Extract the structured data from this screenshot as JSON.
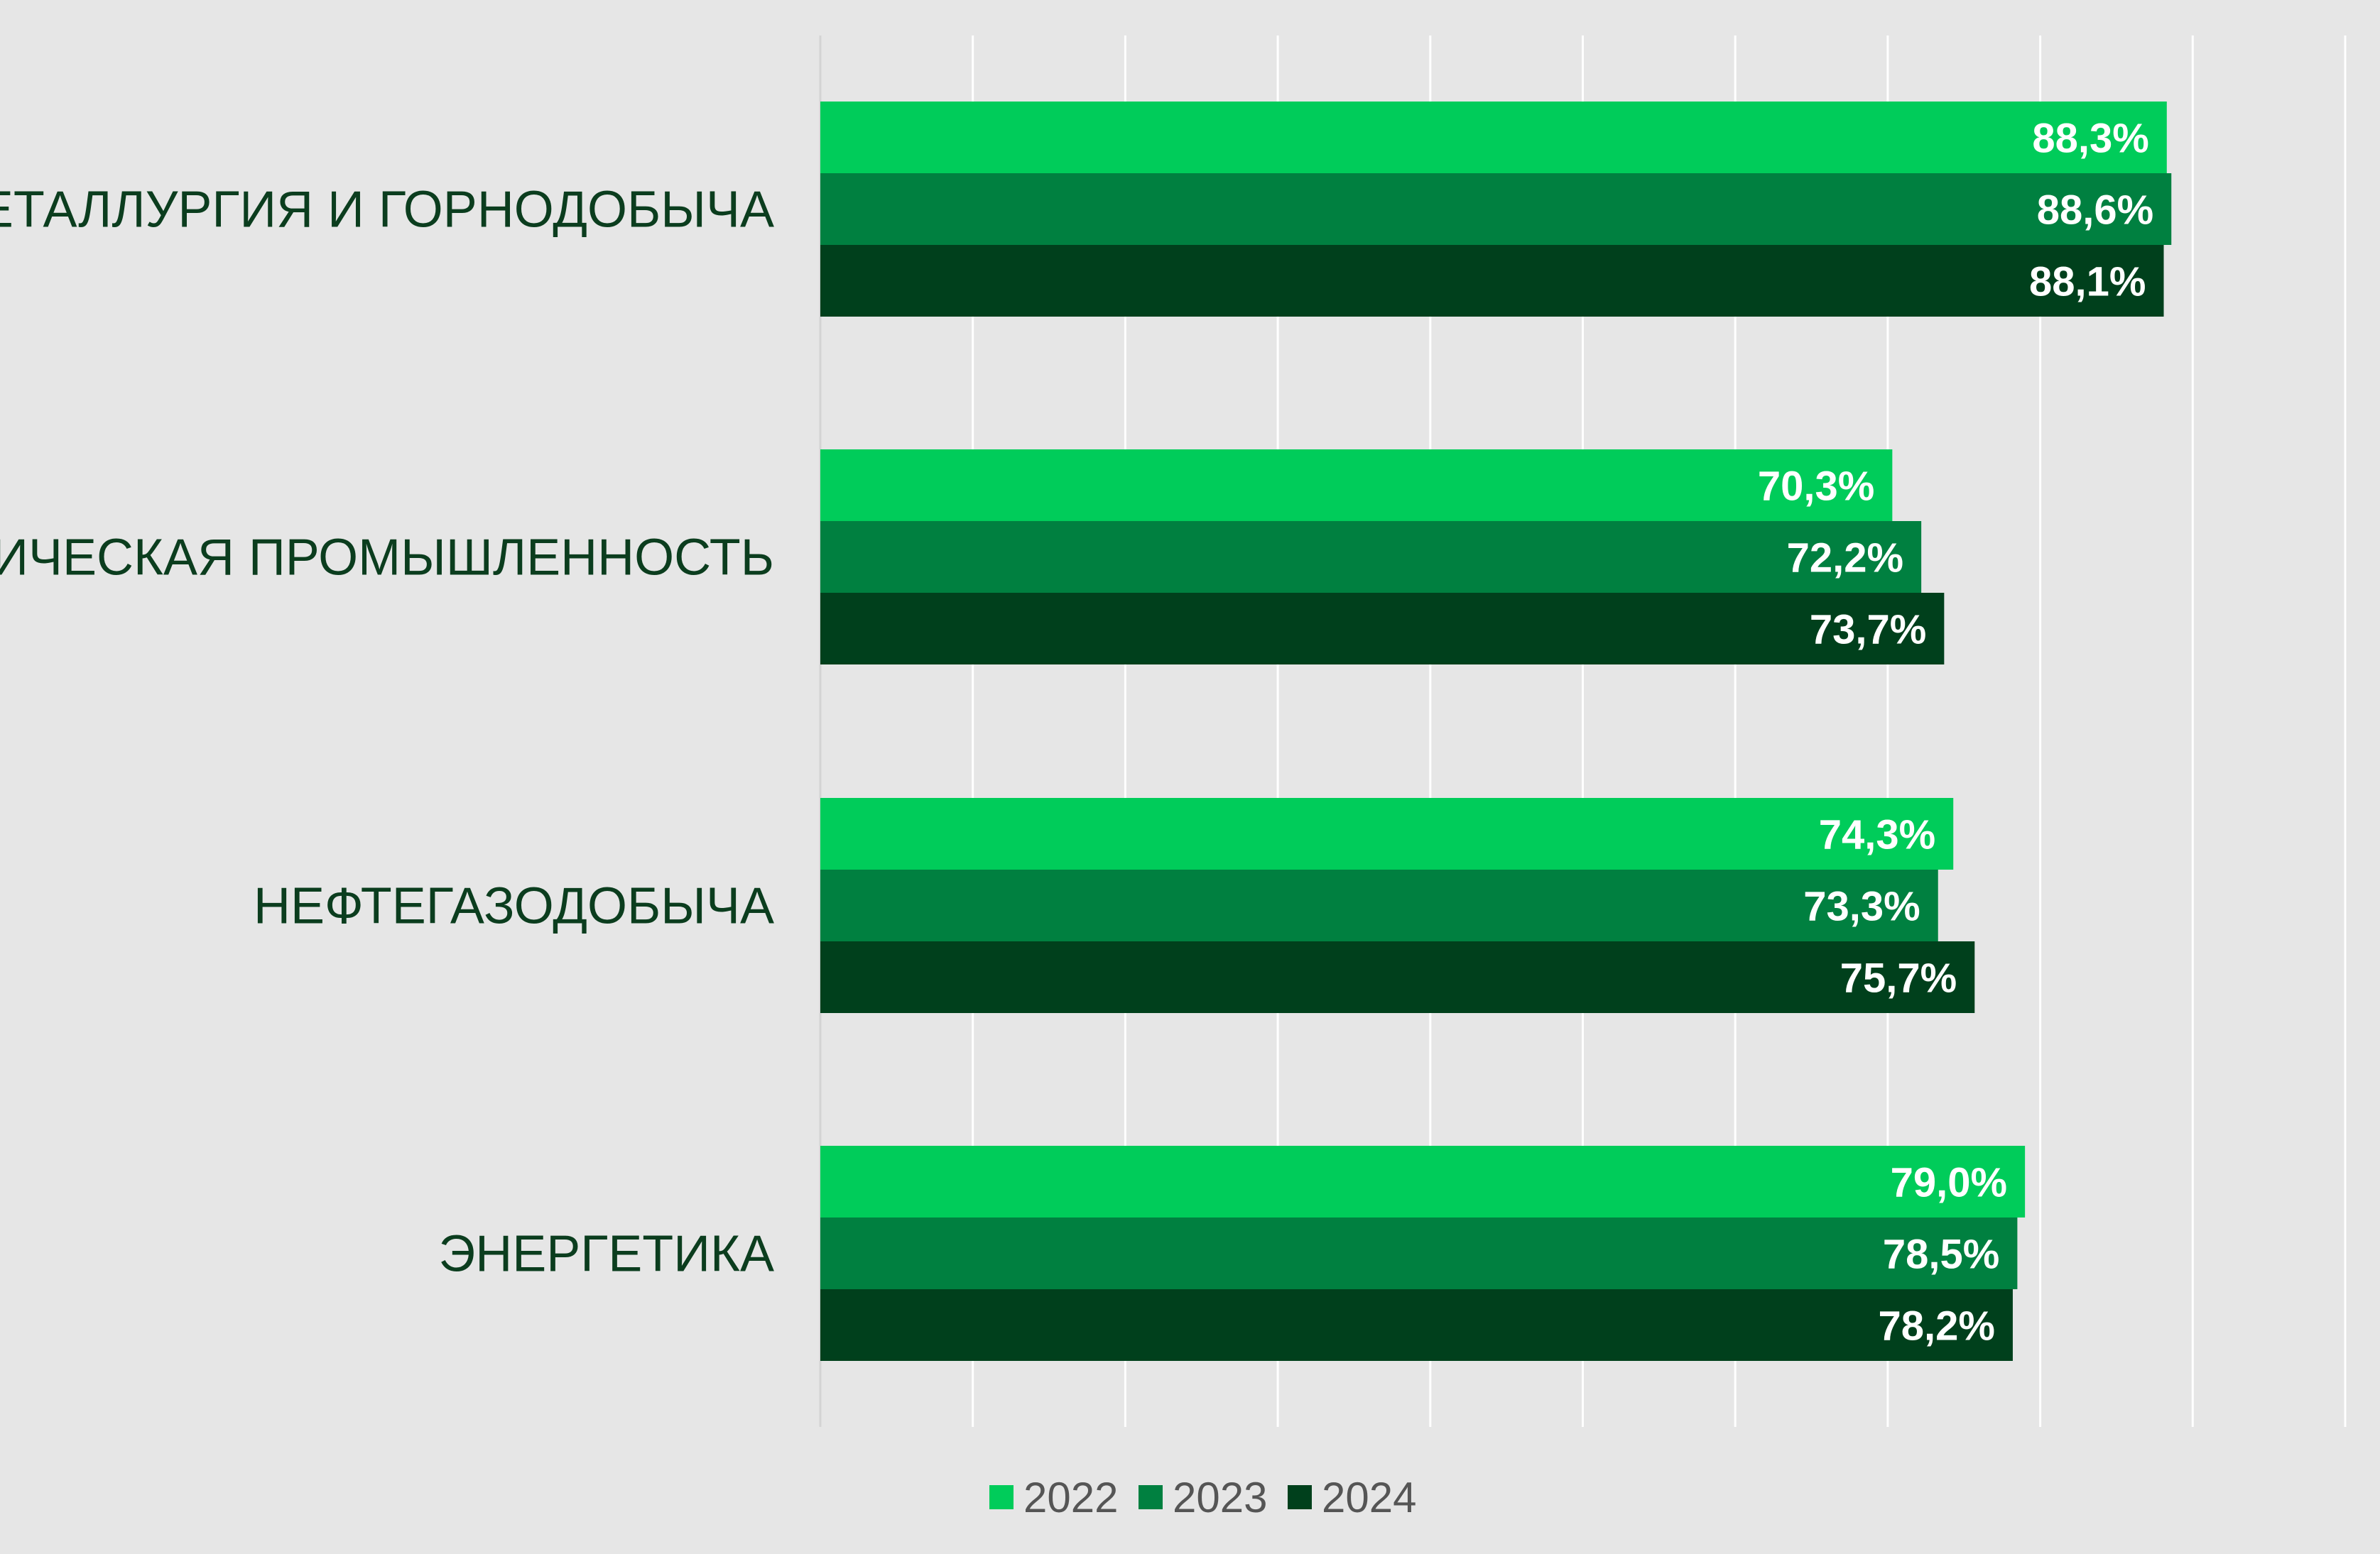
{
  "chart_data": {
    "type": "bar",
    "orientation": "horizontal",
    "categories": [
      "МЕТАЛЛУРГИЯ И ГОРНОДОБЫЧА",
      "ХИМИЧЕСКАЯ ПРОМЫШЛЕННОСТЬ",
      "НЕФТЕГАЗОДОБЫЧА",
      "ЭНЕРГЕТИКА"
    ],
    "series": [
      {
        "name": "2022",
        "color": "#00cc5a",
        "values": [
          88.3,
          70.3,
          74.3,
          79.0
        ],
        "labels": [
          "88,3%",
          "70,3%",
          "74,3%",
          "79,0%"
        ]
      },
      {
        "name": "2023",
        "color": "#008040",
        "values": [
          88.6,
          72.2,
          73.3,
          78.5
        ],
        "labels": [
          "88,6%",
          "72,2%",
          "73,3%",
          "78,5%"
        ]
      },
      {
        "name": "2024",
        "color": "#00401c",
        "values": [
          88.1,
          73.7,
          75.7,
          78.2
        ],
        "labels": [
          "88,1%",
          "73,7%",
          "75,7%",
          "78,2%"
        ]
      }
    ],
    "xlim": [
      0,
      100
    ],
    "grid": true,
    "legend_position": "bottom",
    "title": "",
    "xlabel": "",
    "ylabel": ""
  }
}
